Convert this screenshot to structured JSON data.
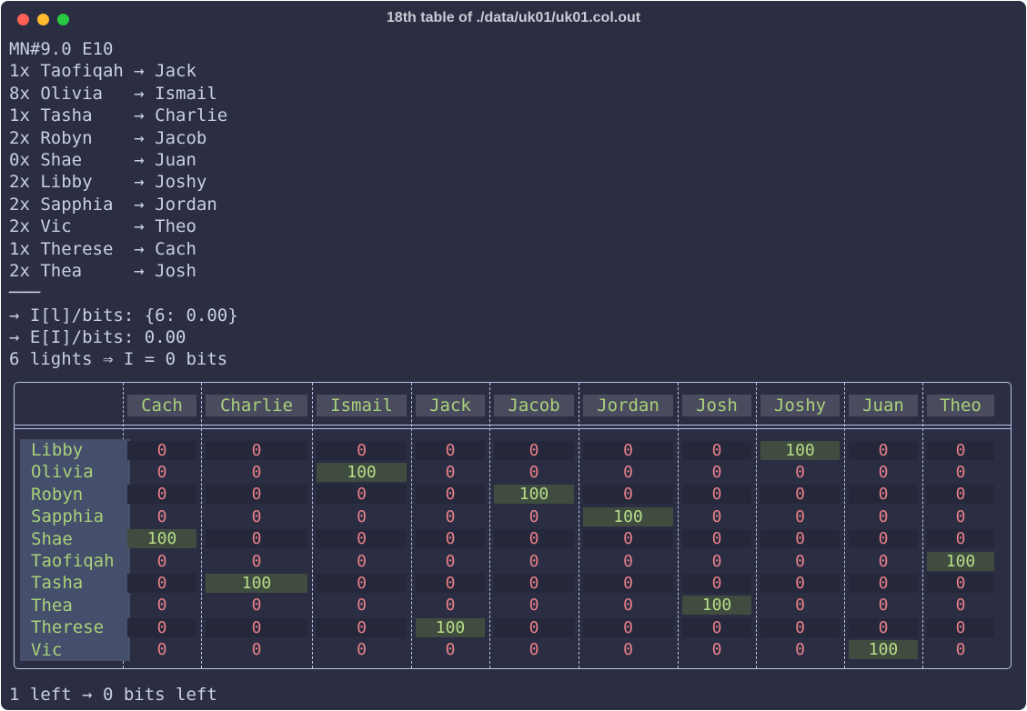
{
  "window": {
    "title": "18th table of ./data/uk01/uk01.col.out"
  },
  "log": {
    "lines": [
      "MN#9.0 E10",
      "1x Taofiqah → Jack",
      "8x Olivia   → Ismail",
      "1x Tasha    → Charlie",
      "2x Robyn    → Jacob",
      "0x Shae     → Juan",
      "2x Libby    → Joshy",
      "2x Sapphia  → Jordan",
      "2x Vic      → Theo",
      "1x Therese  → Cach",
      "2x Thea     → Josh",
      "───",
      "→ I[l]/bits: {6: 0.00}",
      "→ E[I]/bits: 0.00",
      "6 lights ⇒ I = 0 bits"
    ]
  },
  "table": {
    "columns": [
      "Cach",
      "Charlie",
      "Ismail",
      "Jack",
      "Jacob",
      "Jordan",
      "Josh",
      "Joshy",
      "Juan",
      "Theo"
    ],
    "rows": [
      {
        "name": "Libby",
        "values": [
          "0",
          "0",
          "0",
          "0",
          "0",
          "0",
          "0",
          "100",
          "0",
          "0"
        ]
      },
      {
        "name": "Olivia",
        "values": [
          "0",
          "0",
          "100",
          "0",
          "0",
          "0",
          "0",
          "0",
          "0",
          "0"
        ]
      },
      {
        "name": "Robyn",
        "values": [
          "0",
          "0",
          "0",
          "0",
          "100",
          "0",
          "0",
          "0",
          "0",
          "0"
        ]
      },
      {
        "name": "Sapphia",
        "values": [
          "0",
          "0",
          "0",
          "0",
          "0",
          "100",
          "0",
          "0",
          "0",
          "0"
        ]
      },
      {
        "name": "Shae",
        "values": [
          "100",
          "0",
          "0",
          "0",
          "0",
          "0",
          "0",
          "0",
          "0",
          "0"
        ]
      },
      {
        "name": "Taofiqah",
        "values": [
          "0",
          "0",
          "0",
          "0",
          "0",
          "0",
          "0",
          "0",
          "0",
          "100"
        ]
      },
      {
        "name": "Tasha",
        "values": [
          "0",
          "100",
          "0",
          "0",
          "0",
          "0",
          "0",
          "0",
          "0",
          "0"
        ]
      },
      {
        "name": "Thea",
        "values": [
          "0",
          "0",
          "0",
          "0",
          "0",
          "0",
          "100",
          "0",
          "0",
          "0"
        ]
      },
      {
        "name": "Therese",
        "values": [
          "0",
          "0",
          "0",
          "100",
          "0",
          "0",
          "0",
          "0",
          "0",
          "0"
        ]
      },
      {
        "name": "Vic",
        "values": [
          "0",
          "0",
          "0",
          "0",
          "0",
          "0",
          "0",
          "0",
          "100",
          "0"
        ]
      }
    ]
  },
  "footer": {
    "text": "1 left → 0 bits left"
  },
  "colors": {
    "background": "#2b2e42",
    "header_text": "#a8d17a",
    "zero_value": "#e8808a",
    "highlight_cell": "#3f4c3f"
  }
}
